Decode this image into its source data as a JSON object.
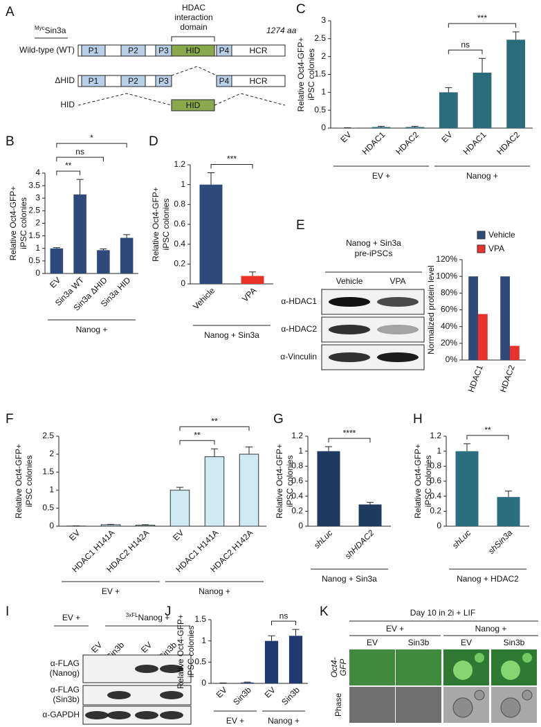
{
  "panel_labels": [
    "A",
    "B",
    "C",
    "D",
    "E",
    "F",
    "G",
    "H",
    "I",
    "J",
    "K"
  ],
  "diagram_a": {
    "construct": {
      "superscript": "Myc",
      "name": "Sin3a"
    },
    "domain_title": [
      "HDAC",
      "interaction",
      "domain"
    ],
    "length": "1274 aa",
    "rows": [
      {
        "label": "Wild-type (WT)",
        "domains": [
          "P1",
          "P2",
          "P3",
          "HID",
          "P4",
          "HCR"
        ]
      },
      {
        "label": "ΔHID",
        "domains": [
          "P1",
          "P2",
          "P3",
          "P4",
          "HCR"
        ]
      },
      {
        "label": "HID",
        "domains": [
          "HID"
        ]
      }
    ]
  },
  "blot_e": {
    "header": [
      "Nanog + Sin3a",
      "pre-iPSCs"
    ],
    "lanes": [
      "Vehicle",
      "VPA"
    ],
    "rows": [
      [
        "α-HDAC1"
      ],
      [
        "α-HDAC2"
      ],
      [
        "α-Vinculin"
      ]
    ]
  },
  "blot_i": {
    "groups": [
      {
        "name": "EV +"
      },
      {
        "superscript": "3xFL",
        "name": "Nanog +"
      }
    ],
    "lanes": [
      {
        "name": "EV"
      },
      {
        "superscript": "3xFL",
        "name": "Sin3b"
      },
      {
        "name": "EV"
      },
      {
        "superscript": "3xFL",
        "name": "Sin3b"
      }
    ],
    "rows": [
      [
        "α-FLAG",
        "(Nanog)"
      ],
      [
        "α-FLAG",
        "(Sin3b)"
      ],
      [
        "α-GAPDH"
      ]
    ]
  },
  "images_k": {
    "title": "Day 10 in 2i + LIF",
    "groups": [
      "EV +",
      "Nanog +"
    ],
    "columns": [
      "EV",
      "Sin3b",
      "EV",
      "Sin3b"
    ],
    "rows": [
      [
        "Oct4-",
        "GFP"
      ],
      [
        "Phase"
      ]
    ]
  },
  "chart_data": [
    {
      "type": "bar",
      "ylabel": [
        "Relative Oct4-GFP+",
        "iPSC colonies"
      ],
      "categories": [
        "EV",
        "Sin3a WT",
        "Sin3a ΔHID",
        "Sin3a HID"
      ],
      "values": [
        1,
        3.15,
        0.93,
        1.42
      ],
      "errors": [
        0.03,
        0.6,
        0.05,
        0.13
      ],
      "color": "#2e4a7a",
      "ylim": [
        0,
        4
      ],
      "yticks": [
        0,
        0.5,
        1,
        1.5,
        2,
        2.5,
        3,
        3.5,
        4
      ],
      "groups": [
        {
          "label": "Nanog +",
          "bars": [
            0,
            3
          ]
        }
      ],
      "significance": [
        {
          "label": "**",
          "bars": [
            0,
            1
          ]
        },
        {
          "label": "ns",
          "bars": [
            0,
            2
          ]
        },
        {
          "label": "*",
          "bars": [
            0,
            3
          ]
        }
      ]
    },
    {
      "type": "bar",
      "ylabel": [
        "Relative Oct4-GFP+",
        "iPSC colonies"
      ],
      "categories": [
        "EV",
        "HDAC1",
        "HDAC2",
        "EV",
        "HDAC1",
        "HDAC2"
      ],
      "values": [
        0.005,
        0.03,
        0.03,
        1,
        1.55,
        2.47
      ],
      "errors": [
        0.005,
        0.02,
        0.02,
        0.13,
        0.4,
        0.22
      ],
      "color": "#2a6b7c",
      "ylim": [
        0,
        3
      ],
      "yticks": [
        0,
        0.5,
        1,
        1.5,
        2,
        2.5,
        3
      ],
      "groups": [
        {
          "label": "EV +",
          "bars": [
            0,
            2
          ]
        },
        {
          "label": "Nanog +",
          "bars": [
            3,
            5
          ]
        }
      ],
      "significance": [
        {
          "label": "ns",
          "bars": [
            3,
            4
          ]
        },
        {
          "label": "***",
          "bars": [
            3,
            5
          ]
        }
      ]
    },
    {
      "type": "bar",
      "ylabel": [
        "Relative Oct4-GFP+",
        "iPSC colonies"
      ],
      "categories": [
        "Vehicle",
        "VPA"
      ],
      "values": [
        1,
        0.08
      ],
      "errors": [
        0.12,
        0.04
      ],
      "colors": [
        "#2e4a7a",
        "#e8322a"
      ],
      "ylim": [
        0,
        1.2
      ],
      "yticks": [
        0,
        0.2,
        0.4,
        0.6,
        0.8,
        1,
        1.2
      ],
      "groups": [
        {
          "label": "Nanog + Sin3a",
          "bars": [
            0,
            1
          ]
        }
      ],
      "significance": [
        {
          "label": "***",
          "bars": [
            0,
            1
          ]
        }
      ]
    },
    {
      "type": "bar",
      "ylabel": [
        "Normalized protein level"
      ],
      "categories": [
        "HDAC1",
        "HDAC2"
      ],
      "series": [
        {
          "name": "Vehicle",
          "color": "#2e4a7a",
          "values": [
            100,
            100
          ]
        },
        {
          "name": "VPA",
          "color": "#e8322a",
          "values": [
            55,
            17
          ]
        }
      ],
      "ylim": [
        0,
        120
      ],
      "yticks": [
        {
          "value": 0,
          "label": "0%"
        },
        {
          "value": 20,
          "label": "20%"
        },
        {
          "value": 40,
          "label": "40%"
        },
        {
          "value": 60,
          "label": "60%"
        },
        {
          "value": 80,
          "label": "80%"
        },
        {
          "value": 100,
          "label": "100%"
        },
        {
          "value": 120,
          "label": "120%"
        }
      ]
    },
    {
      "type": "bar",
      "ylabel": [
        "Relative Oct4-GFP+",
        "iPSC colonies"
      ],
      "categories": [
        "EV",
        "HDAC1 H141A",
        "HDAC2 H142A",
        "EV",
        "HDAC1 H141A",
        "HDAC2 H142A"
      ],
      "values": [
        0.005,
        0.04,
        0.03,
        1,
        1.93,
        2.0
      ],
      "errors": [
        0.005,
        0.01,
        0.01,
        0.08,
        0.22,
        0.2
      ],
      "color": "#cfeaf3",
      "stroke": "#333333",
      "ylim": [
        0,
        2.5
      ],
      "yticks": [
        0,
        0.5,
        1,
        1.5,
        2,
        2.5
      ],
      "groups": [
        {
          "label": "EV +",
          "bars": [
            0,
            2
          ]
        },
        {
          "label": "Nanog +",
          "bars": [
            3,
            5
          ]
        }
      ],
      "significance": [
        {
          "label": "**",
          "bars": [
            3,
            4
          ]
        },
        {
          "label": "**",
          "bars": [
            3,
            5
          ]
        }
      ]
    },
    {
      "type": "bar",
      "ylabel": [
        "Relative Oct4-GFP+",
        "iPSC colonies"
      ],
      "categories": [
        "shLuc",
        "shHDAC2"
      ],
      "values": [
        1,
        0.29
      ],
      "errors": [
        0.06,
        0.03
      ],
      "color": "#1f3a5f",
      "ylim": [
        0,
        1.2
      ],
      "yticks": [
        0,
        0.2,
        0.4,
        0.6,
        0.8,
        1,
        1.2
      ],
      "groups": [
        {
          "label": "Nanog + Sin3a",
          "bars": [
            0,
            1
          ]
        }
      ],
      "significance": [
        {
          "label": "****",
          "bars": [
            0,
            1
          ]
        }
      ]
    },
    {
      "type": "bar",
      "ylabel": [
        "Relative Oct4-GFP+",
        "iPSC colonies"
      ],
      "categories": [
        "shLuc",
        "shSin3a"
      ],
      "values": [
        1,
        0.39
      ],
      "errors": [
        0.1,
        0.08
      ],
      "color": "#2c6f80",
      "ylim": [
        0,
        1.2
      ],
      "yticks": [
        0,
        0.2,
        0.4,
        0.6,
        0.8,
        1,
        1.2
      ],
      "groups": [
        {
          "label": "Nanog + HDAC2",
          "bars": [
            0,
            1
          ]
        }
      ],
      "significance": [
        {
          "label": "**",
          "bars": [
            0,
            1
          ]
        }
      ]
    },
    {
      "type": "bar",
      "ylabel": [
        "Relative Oct4-GFP+",
        "iPSC colonies"
      ],
      "categories": [
        "EV",
        "Sin3b",
        "EV",
        "Sin3b"
      ],
      "values": [
        0.005,
        0.02,
        1,
        1.12
      ],
      "errors": [
        0.005,
        0.01,
        0.12,
        0.15
      ],
      "color": "#1f3a6f",
      "ylim": [
        0,
        1.5
      ],
      "yticks": [
        0,
        0.5,
        1,
        1.5
      ],
      "groups": [
        {
          "label": "EV +",
          "bars": [
            0,
            1
          ]
        },
        {
          "label": "Nanog +",
          "bars": [
            2,
            3
          ]
        }
      ],
      "significance": [
        {
          "label": "ns",
          "bars": [
            2,
            3
          ]
        }
      ]
    }
  ]
}
